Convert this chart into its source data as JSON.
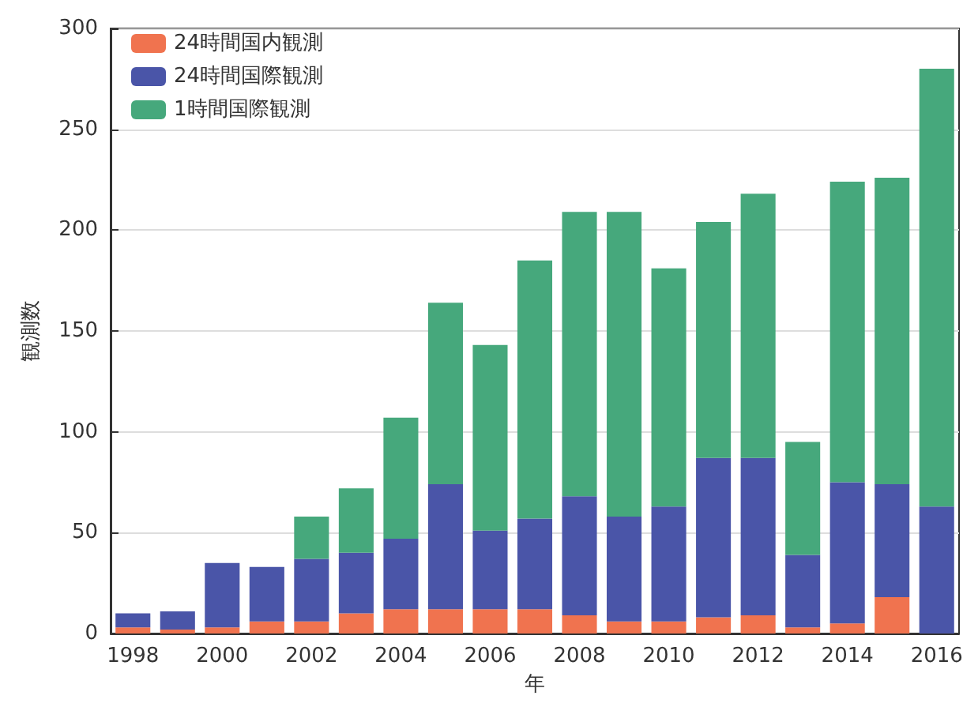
{
  "chart_data": {
    "type": "bar",
    "stacked": true,
    "xlabel": "年",
    "ylabel": "観測数",
    "categories": [
      "1998",
      null,
      "2000",
      null,
      "2002",
      null,
      "2004",
      null,
      "2006",
      null,
      "2008",
      null,
      "2010",
      null,
      "2012",
      null,
      "2014",
      null,
      "2016"
    ],
    "series": [
      {
        "name": "24時間国内観測",
        "color": "#f0734f",
        "values": [
          3,
          2,
          3,
          6,
          6,
          10,
          12,
          12,
          12,
          12,
          9,
          6,
          6,
          8,
          9,
          3,
          5,
          18,
          0
        ]
      },
      {
        "name": "24時間国際観測",
        "color": "#4a55a8",
        "values": [
          7,
          9,
          32,
          27,
          31,
          30,
          35,
          62,
          39,
          45,
          59,
          52,
          57,
          79,
          78,
          36,
          70,
          56,
          63
        ]
      },
      {
        "name": "1時間国際観測",
        "color": "#46a87c",
        "values": [
          0,
          0,
          0,
          0,
          21,
          32,
          60,
          90,
          92,
          128,
          141,
          151,
          118,
          117,
          131,
          56,
          149,
          152,
          217
        ]
      }
    ],
    "ylim": [
      0,
      300
    ],
    "yticks": [
      0,
      50,
      100,
      150,
      200,
      250,
      300
    ],
    "grid": "y",
    "legend": "top left"
  }
}
